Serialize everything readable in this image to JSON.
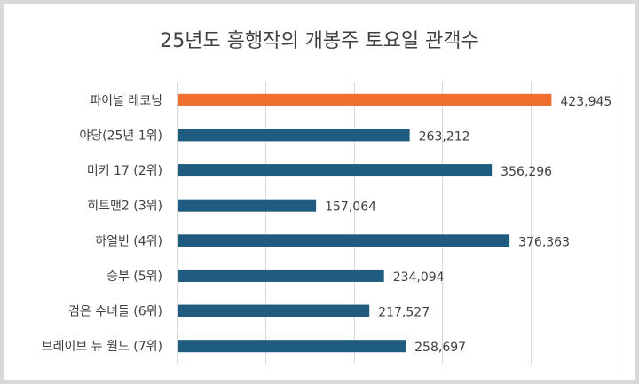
{
  "chart_data": {
    "type": "bar",
    "orientation": "horizontal",
    "title": "25년도 흥행작의 개봉주 토요일 관객수",
    "xlabel": "",
    "ylabel": "",
    "xlim": [
      0,
      500000
    ],
    "grid": true,
    "categories": [
      "파이널 레코닝",
      "야당(25년 1위)",
      "미키 17 (2위)",
      "히트맨2 (3위)",
      "하얼빈 (4위)",
      "승부 (5위)",
      "검은 수녀들 (6위)",
      "브레이브 뉴 월드 (7위)"
    ],
    "values": [
      423945,
      263212,
      356296,
      157064,
      376363,
      234094,
      217527,
      258697
    ],
    "labels": [
      "423,945",
      "263,212",
      "356,296",
      "157,064",
      "376,363",
      "234,094",
      "217,527",
      "258,697"
    ],
    "highlight_index": 0,
    "colors": {
      "highlight": "#ED7031",
      "default": "#1F5C80",
      "grid": "#d9d9d9",
      "text": "#404040"
    }
  }
}
